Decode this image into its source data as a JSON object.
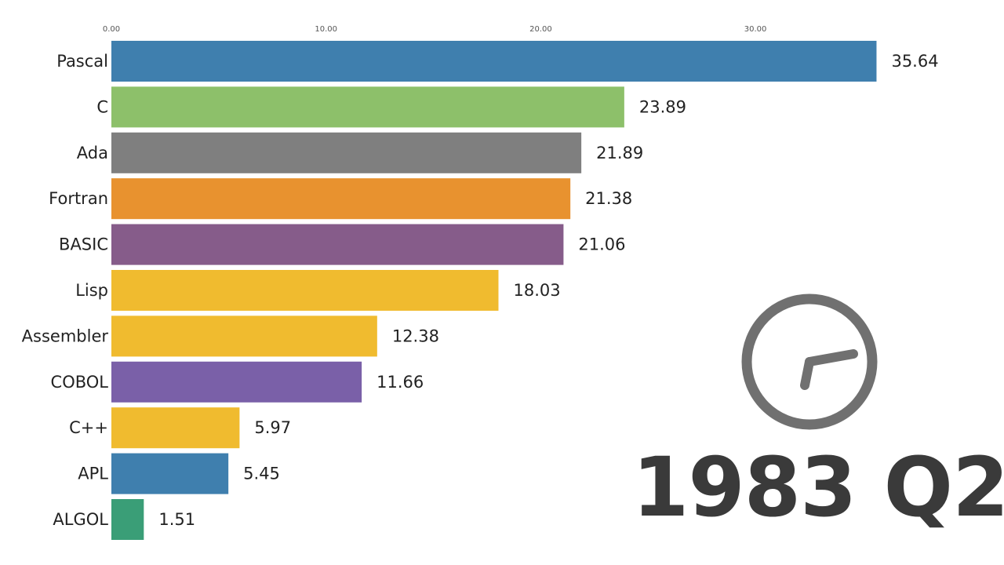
{
  "chart_data": {
    "type": "bar",
    "orientation": "horizontal",
    "categories": [
      "Pascal",
      "C",
      "Ada",
      "Fortran",
      "BASIC",
      "Lisp",
      "Assembler",
      "COBOL",
      "C++",
      "APL",
      "ALGOL"
    ],
    "values": [
      35.64,
      23.89,
      21.89,
      21.38,
      21.06,
      18.03,
      12.38,
      11.66,
      5.97,
      5.45,
      1.51
    ],
    "value_labels": [
      "35.64",
      "23.89",
      "21.89",
      "21.38",
      "21.06",
      "18.03",
      "12.38",
      "11.66",
      "5.97",
      "5.45",
      "1.51"
    ],
    "colors": [
      "#3f7fae",
      "#8dc06a",
      "#7f7f7f",
      "#e8922f",
      "#865c8a",
      "#f0bb2f",
      "#f0bb2f",
      "#7a60a8",
      "#f0bb2f",
      "#3f7fae",
      "#3a9e77"
    ],
    "xlim": [
      0,
      36
    ],
    "xticks": [
      0,
      10,
      20,
      30
    ],
    "xtick_labels": [
      "0.00",
      "10.00",
      "20.00",
      "30.00"
    ],
    "x_axis_position": "top",
    "grid": false,
    "legend": "none"
  },
  "period": {
    "label": "1983 Q2"
  },
  "clock": {
    "icon": "clock-icon",
    "color": "#707070"
  }
}
